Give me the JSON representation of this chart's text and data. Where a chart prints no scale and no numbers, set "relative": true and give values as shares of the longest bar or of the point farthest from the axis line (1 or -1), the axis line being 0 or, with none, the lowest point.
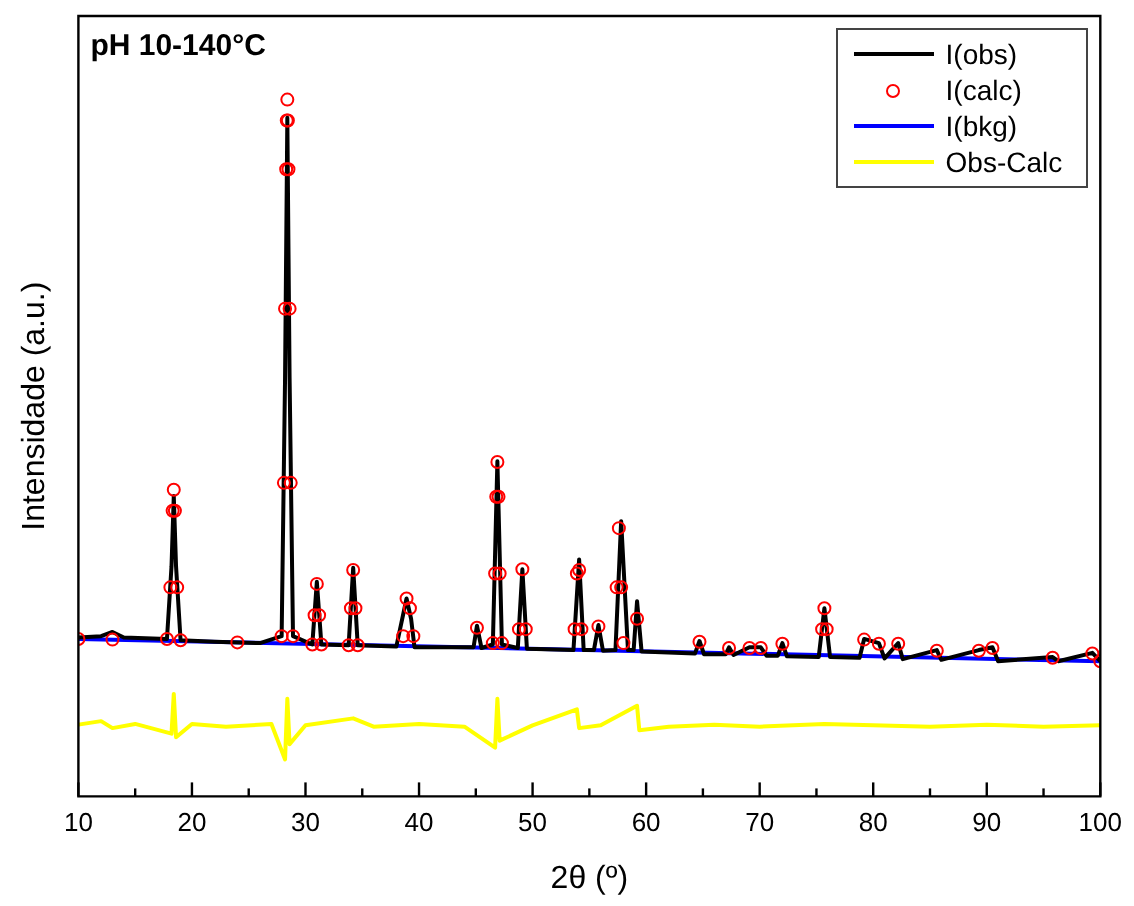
{
  "chart_data": {
    "type": "line",
    "title": "pH 10-140°C",
    "xlabel": "2θ (º)",
    "ylabel": "Intensidade (a.u.)",
    "relative": true,
    "xlim": [
      10,
      100
    ],
    "xticks": [
      10,
      {
        "value": 15,
        "label": null
      },
      20,
      {
        "value": 25,
        "label": null
      },
      30,
      {
        "value": 35,
        "label": null
      },
      40,
      {
        "value": 45,
        "label": null
      },
      50,
      {
        "value": 55,
        "label": null
      },
      60,
      {
        "value": 65,
        "label": null
      },
      70,
      {
        "value": 75,
        "label": null
      },
      80,
      {
        "value": 85,
        "label": null
      },
      90,
      {
        "value": 95,
        "label": null
      },
      100
    ],
    "legend": "top right",
    "grid": false,
    "series": [
      {
        "name": "I(obs)",
        "color": "#000000",
        "marker": "none",
        "x": [
          10,
          12,
          13,
          14,
          17.8,
          18.2,
          18.4,
          18.6,
          19,
          22,
          26,
          27.9,
          28.2,
          28.4,
          28.6,
          28.9,
          30.6,
          31,
          31.4,
          33.8,
          34.2,
          34.6,
          38,
          38.9,
          39.3,
          39.6,
          44.8,
          45.1,
          45.5,
          46.5,
          46.9,
          47.3,
          48.7,
          49.1,
          49.5,
          53.6,
          54.1,
          54.5,
          55.4,
          55.8,
          56.2,
          57.3,
          57.8,
          58.4,
          58.9,
          59.2,
          59.6,
          64.3,
          64.7,
          65.1,
          67,
          67.3,
          67.7,
          69.1,
          70.1,
          70.6,
          71.6,
          72,
          72.4,
          75.2,
          75.7,
          76.2,
          78.8,
          79.2,
          80.5,
          81,
          82.2,
          82.6,
          85.6,
          86,
          89.3,
          90.5,
          91,
          95.8,
          96.3,
          99.3,
          100
        ],
        "values": [
          0.228,
          0.23,
          0.236,
          0.228,
          0.226,
          0.33,
          0.431,
          0.33,
          0.224,
          0.222,
          0.22,
          0.23,
          0.6,
          0.974,
          0.6,
          0.23,
          0.218,
          0.308,
          0.218,
          0.217,
          0.328,
          0.217,
          0.215,
          0.284,
          0.255,
          0.214,
          0.214,
          0.245,
          0.213,
          0.218,
          0.481,
          0.218,
          0.213,
          0.326,
          0.212,
          0.21,
          0.34,
          0.21,
          0.21,
          0.246,
          0.209,
          0.21,
          0.395,
          0.21,
          0.21,
          0.28,
          0.208,
          0.205,
          0.223,
          0.204,
          0.204,
          0.214,
          0.203,
          0.214,
          0.214,
          0.202,
          0.202,
          0.22,
          0.201,
          0.2,
          0.27,
          0.2,
          0.199,
          0.226,
          0.22,
          0.198,
          0.22,
          0.197,
          0.21,
          0.196,
          0.21,
          0.214,
          0.194,
          0.2,
          0.194,
          0.206,
          0.194
        ]
      },
      {
        "name": "I(calc)",
        "type": "scatter",
        "color": "#ff0000",
        "marker": "circle",
        "x": [
          10,
          13,
          17.8,
          18.1,
          18.3,
          18.4,
          18.5,
          18.7,
          19,
          24,
          27.9,
          28.1,
          28.2,
          28.3,
          28.35,
          28.4,
          28.45,
          28.5,
          28.6,
          28.7,
          28.9,
          30.6,
          30.8,
          31,
          31.2,
          31.4,
          33.8,
          34,
          34.2,
          34.4,
          34.6,
          38.6,
          38.9,
          39.2,
          39.5,
          45.1,
          46.5,
          46.7,
          46.8,
          46.9,
          47,
          47.1,
          47.3,
          48.8,
          49.1,
          49.4,
          53.7,
          53.9,
          54.1,
          54.3,
          55.8,
          57.4,
          57.6,
          57.8,
          58,
          59.2,
          64.7,
          67.3,
          69.1,
          70.1,
          72,
          75.5,
          75.7,
          75.9,
          79.2,
          80.5,
          82.2,
          85.6,
          89.3,
          90.5,
          95.8,
          99.3,
          100
        ],
        "values": [
          0.226,
          0.225,
          0.226,
          0.3,
          0.41,
          0.44,
          0.41,
          0.3,
          0.224,
          0.221,
          0.23,
          0.45,
          0.7,
          0.9,
          0.97,
          1.0,
          0.97,
          0.9,
          0.7,
          0.45,
          0.23,
          0.218,
          0.26,
          0.305,
          0.26,
          0.218,
          0.217,
          0.27,
          0.325,
          0.27,
          0.217,
          0.23,
          0.284,
          0.27,
          0.23,
          0.242,
          0.22,
          0.32,
          0.43,
          0.48,
          0.43,
          0.32,
          0.22,
          0.24,
          0.326,
          0.24,
          0.24,
          0.32,
          0.325,
          0.24,
          0.244,
          0.3,
          0.385,
          0.3,
          0.22,
          0.255,
          0.222,
          0.213,
          0.213,
          0.213,
          0.219,
          0.24,
          0.27,
          0.24,
          0.225,
          0.219,
          0.219,
          0.209,
          0.209,
          0.213,
          0.199,
          0.205,
          0.194
        ]
      },
      {
        "name": "I(bkg)",
        "color": "#0000ff",
        "marker": "none",
        "x": [
          10,
          100
        ],
        "values": [
          0.226,
          0.194
        ]
      },
      {
        "name": "Obs-Calc",
        "color": "#ffff00",
        "marker": "none",
        "x": [
          10,
          12,
          13,
          15,
          18.2,
          18.4,
          18.6,
          20,
          23,
          27,
          28.2,
          28.4,
          28.6,
          30,
          34.2,
          36,
          40,
          44,
          46.7,
          46.9,
          47.1,
          50,
          53.9,
          54.1,
          56,
          59.2,
          59.4,
          62,
          66,
          70,
          75.7,
          80,
          85,
          90,
          95,
          100
        ],
        "values": [
          0.103,
          0.108,
          0.098,
          0.104,
          0.09,
          0.147,
          0.085,
          0.104,
          0.1,
          0.104,
          0.053,
          0.14,
          0.075,
          0.102,
          0.112,
          0.1,
          0.104,
          0.1,
          0.07,
          0.14,
          0.08,
          0.102,
          0.125,
          0.098,
          0.102,
          0.13,
          0.095,
          0.1,
          0.103,
          0.1,
          0.104,
          0.102,
          0.1,
          0.103,
          0.1,
          0.102
        ]
      }
    ]
  }
}
